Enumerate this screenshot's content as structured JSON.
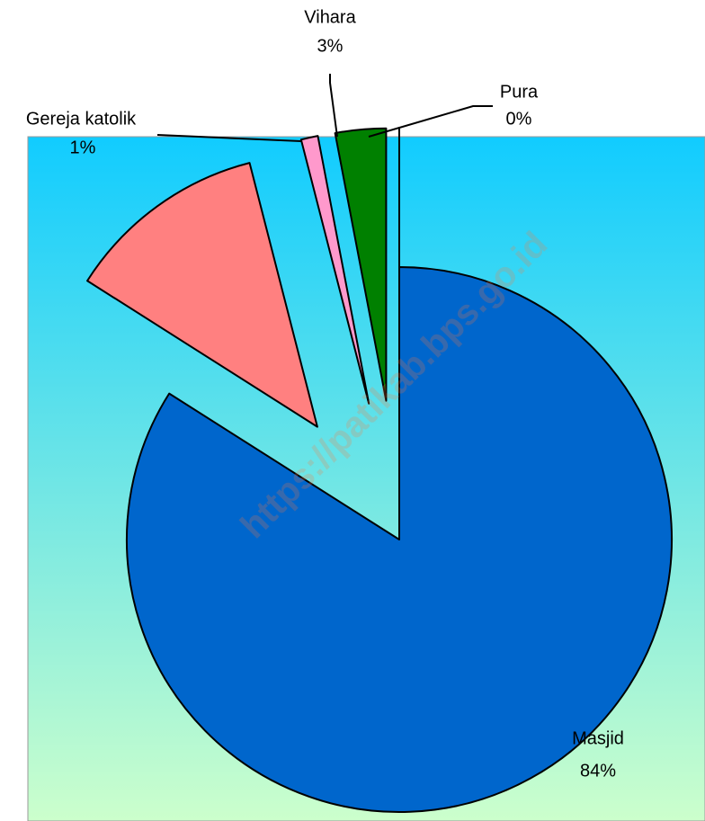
{
  "chart_data": {
    "type": "pie",
    "categories": [
      "Masjid",
      null,
      "Gereja katolik",
      "Vihara",
      "Pura"
    ],
    "values": [
      84,
      12,
      1,
      3,
      0
    ],
    "value_labels": [
      "84%",
      null,
      "1%",
      "3%",
      "0%"
    ],
    "colors": [
      "#0066cc",
      "#ff8080",
      "#ff99cc",
      "#008000",
      "#ccffcc"
    ],
    "watermark": "https://patikab.bps.go.id"
  }
}
